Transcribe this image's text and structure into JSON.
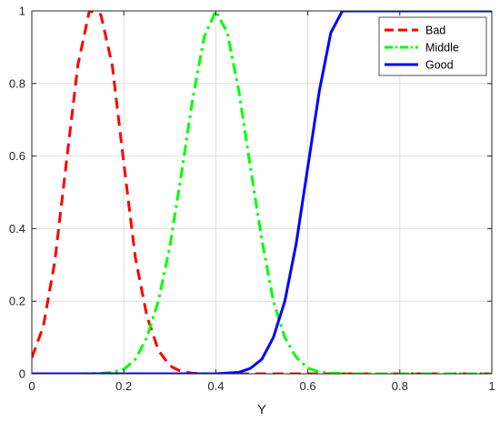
{
  "chart_data": {
    "type": "line",
    "title": "",
    "xlabel": "Y",
    "ylabel": "",
    "xlim": [
      0,
      1
    ],
    "ylim": [
      0,
      1
    ],
    "x_ticks": [
      "0",
      "0.2",
      "0.4",
      "0.6",
      "0.8",
      "1"
    ],
    "y_ticks": [
      "0",
      "0.2",
      "0.4",
      "0.6",
      "0.8",
      "1"
    ],
    "grid": true,
    "legend_position": "top-right",
    "series": [
      {
        "name": "Bad",
        "color": "#ff0000",
        "style": "dashed",
        "x": [
          0,
          0.025,
          0.05,
          0.075,
          0.1,
          0.125,
          0.15,
          0.175,
          0.2,
          0.225,
          0.25,
          0.275,
          0.3,
          0.325,
          0.35,
          0.375,
          0.4,
          0.45,
          0.5,
          0.6,
          0.7,
          0.8,
          0.9,
          1.0
        ],
        "y": [
          0.044,
          0.13,
          0.31,
          0.58,
          0.85,
          1.0,
          0.99,
          0.85,
          0.58,
          0.32,
          0.16,
          0.065,
          0.022,
          0.006,
          0.0015,
          0.0003,
          0,
          0,
          0,
          0,
          0,
          0,
          0,
          0
        ]
      },
      {
        "name": "Middle",
        "color": "#00ff00",
        "style": "dashdot",
        "x": [
          0,
          0.1,
          0.15,
          0.175,
          0.2,
          0.225,
          0.25,
          0.275,
          0.3,
          0.325,
          0.35,
          0.375,
          0.4,
          0.425,
          0.45,
          0.475,
          0.5,
          0.525,
          0.55,
          0.575,
          0.6,
          0.625,
          0.65,
          0.7,
          0.8,
          0.9,
          1.0
        ],
        "y": [
          0,
          0,
          0.001,
          0.004,
          0.012,
          0.04,
          0.1,
          0.2,
          0.35,
          0.55,
          0.76,
          0.93,
          1.0,
          0.94,
          0.78,
          0.57,
          0.37,
          0.2,
          0.1,
          0.045,
          0.016,
          0.005,
          0.0015,
          0,
          0,
          0,
          0
        ]
      },
      {
        "name": "Good",
        "color": "#0000ff",
        "style": "solid",
        "x": [
          0,
          0.4,
          0.45,
          0.475,
          0.5,
          0.525,
          0.55,
          0.575,
          0.6,
          0.625,
          0.65,
          0.675,
          0.7,
          0.8,
          0.9,
          1.0
        ],
        "y": [
          0,
          0,
          0.004,
          0.015,
          0.04,
          0.1,
          0.2,
          0.36,
          0.57,
          0.78,
          0.94,
          1.0,
          1.0,
          1.0,
          1.0,
          1.0
        ]
      }
    ]
  }
}
